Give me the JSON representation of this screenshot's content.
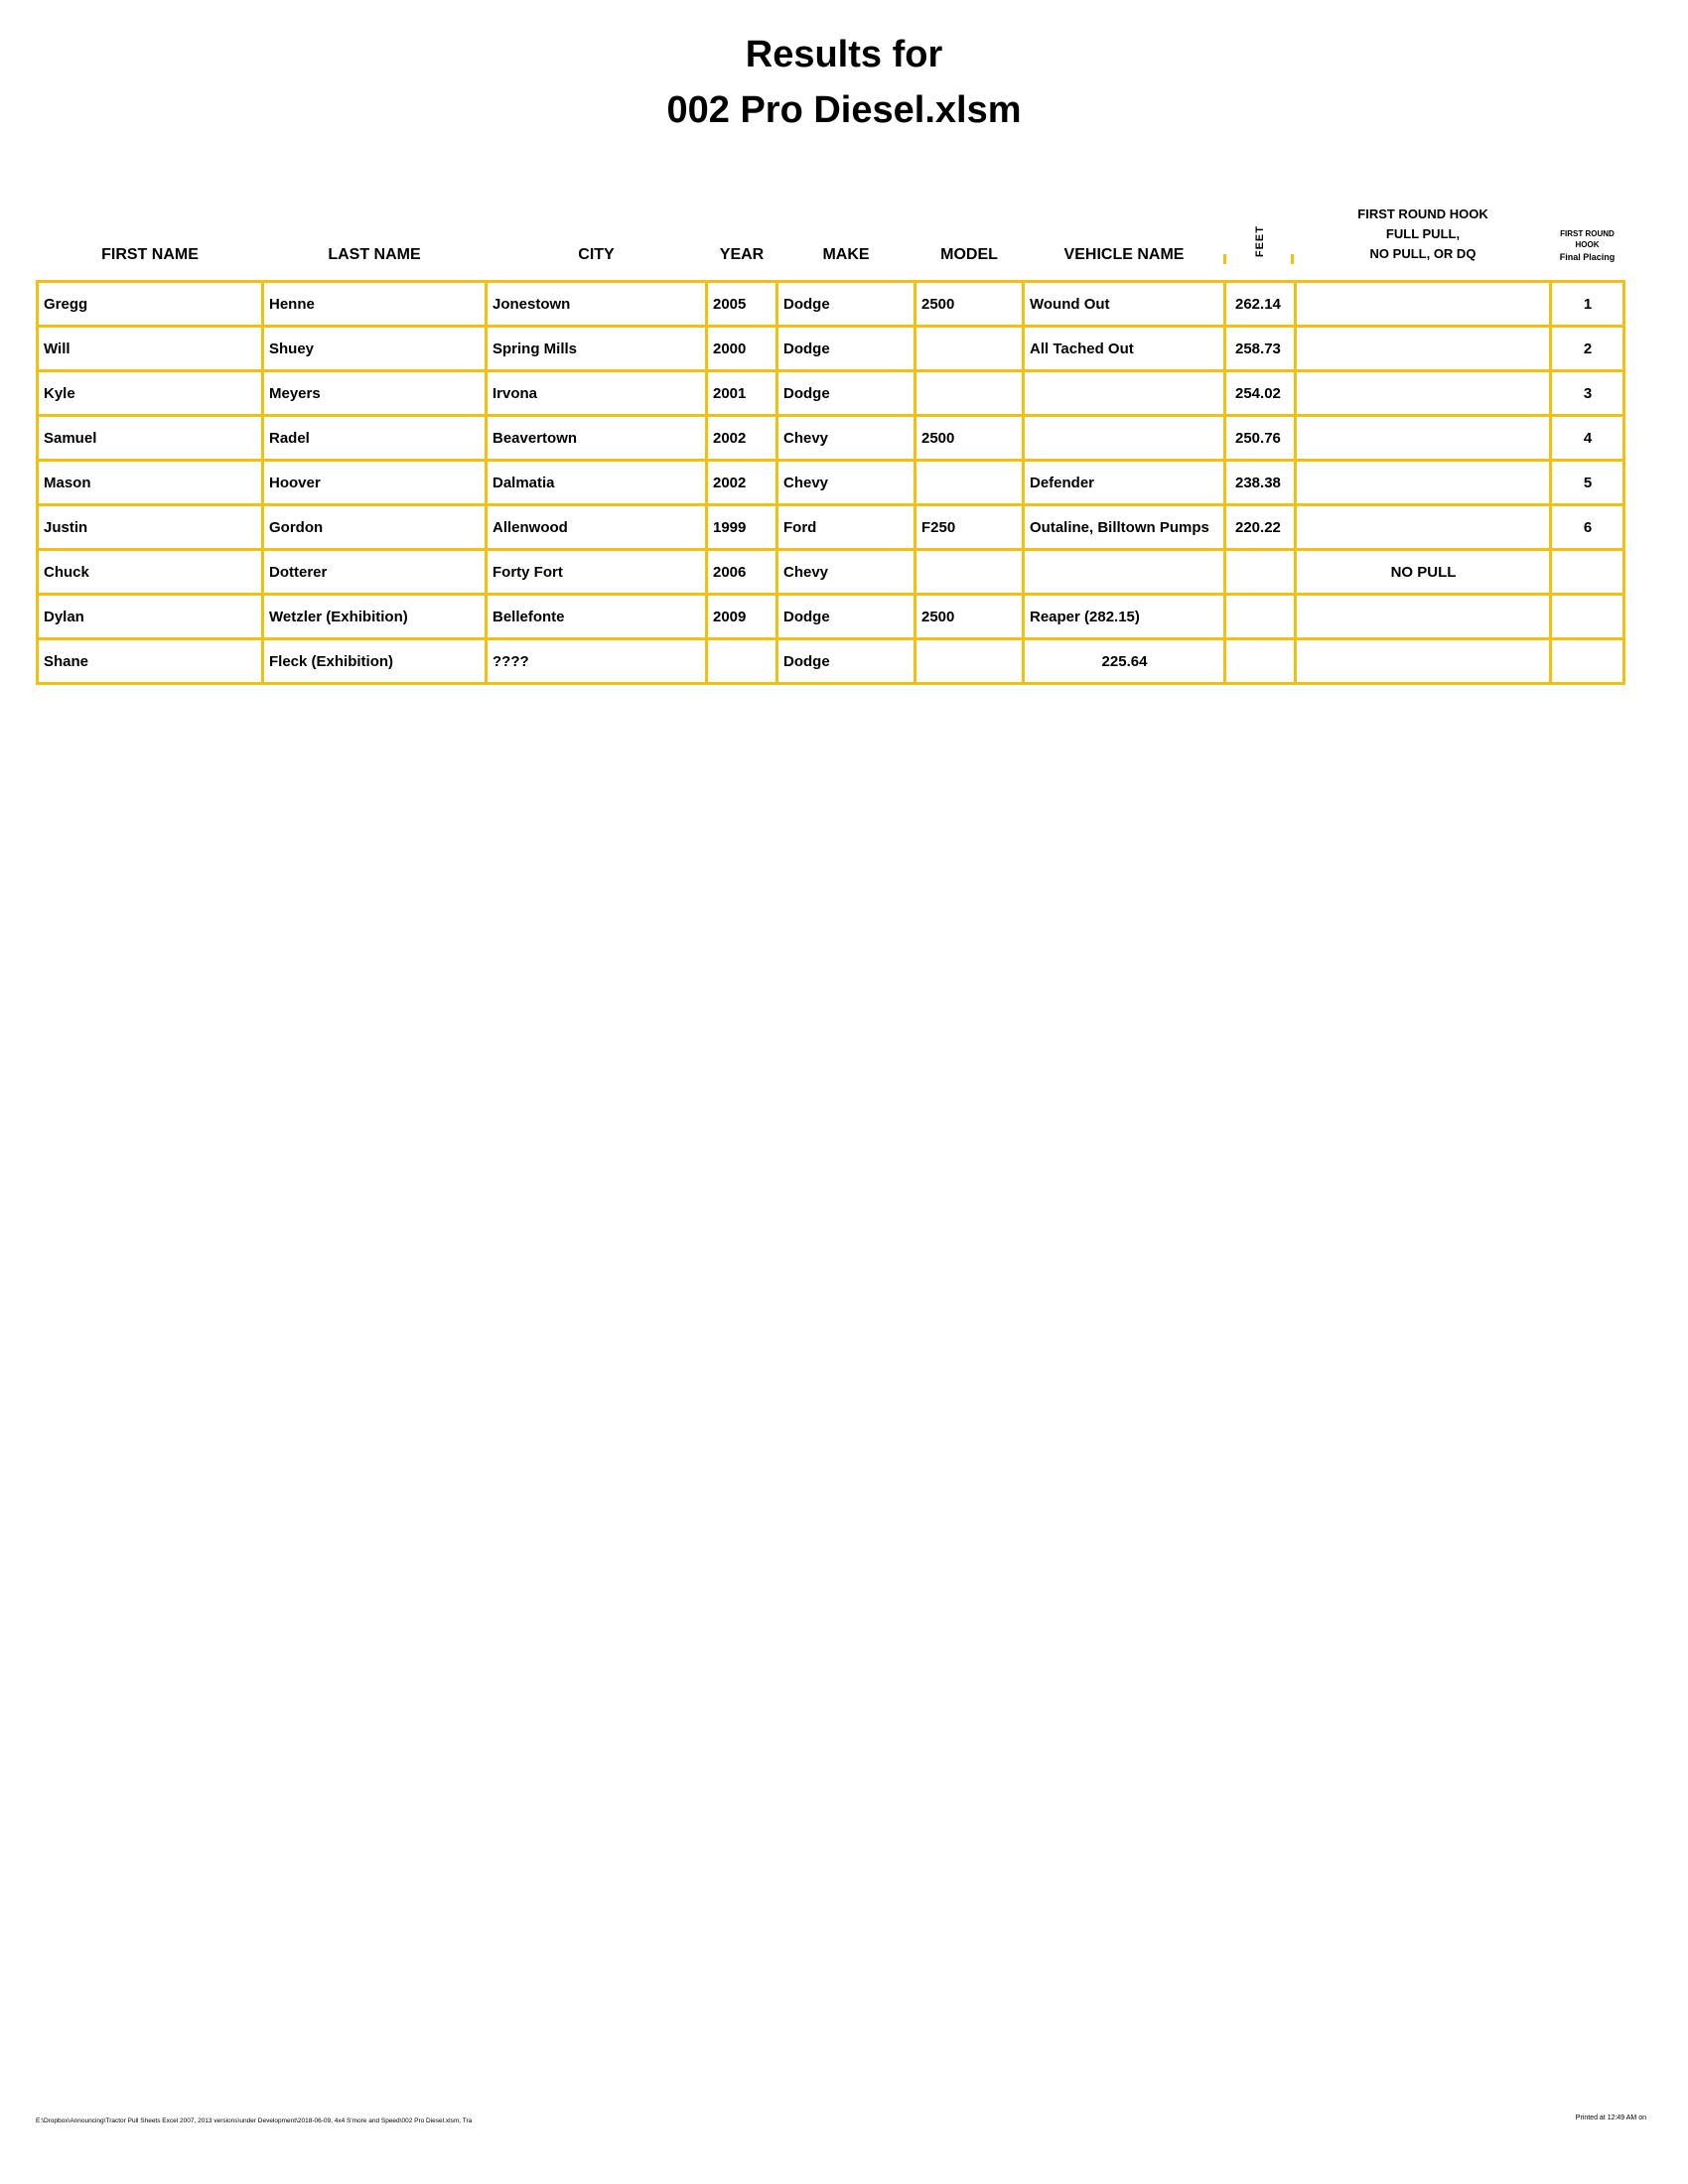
{
  "title": {
    "line1": "Results for",
    "line2": "002 Pro Diesel.xlsm"
  },
  "colors": {
    "table_border": "#F2C011",
    "text": "#000000",
    "background": "#FFFFFF"
  },
  "table": {
    "headers": {
      "first_name": "FIRST NAME",
      "last_name": "LAST NAME",
      "city": "CITY",
      "year": "YEAR",
      "make": "MAKE",
      "model": "MODEL",
      "vehicle_name": "VEHICLE NAME",
      "feet": "FEET",
      "hook": [
        "FIRST ROUND HOOK",
        "FULL PULL,",
        "NO PULL, OR DQ"
      ],
      "placing": [
        "FIRST ROUND",
        "HOOK",
        "Final Placing"
      ]
    },
    "rows": [
      {
        "first": "Gregg",
        "last": "Henne",
        "city": "Jonestown",
        "year": "2005",
        "make": "Dodge",
        "model": "2500",
        "vehicle": "Wound Out",
        "feet": "262.14",
        "hook": "",
        "place": "1"
      },
      {
        "first": "Will",
        "last": "Shuey",
        "city": "Spring Mills",
        "year": "2000",
        "make": "Dodge",
        "model": "",
        "vehicle": "All Tached Out",
        "feet": "258.73",
        "hook": "",
        "place": "2"
      },
      {
        "first": "Kyle",
        "last": "Meyers",
        "city": "Irvona",
        "year": "2001",
        "make": "Dodge",
        "model": "",
        "vehicle": "",
        "feet": "254.02",
        "hook": "",
        "place": "3"
      },
      {
        "first": "Samuel",
        "last": "Radel",
        "city": "Beavertown",
        "year": "2002",
        "make": "Chevy",
        "model": "2500",
        "vehicle": "",
        "feet": "250.76",
        "hook": "",
        "place": "4"
      },
      {
        "first": "Mason",
        "last": "Hoover",
        "city": "Dalmatia",
        "year": "2002",
        "make": "Chevy",
        "model": "",
        "vehicle": "Defender",
        "feet": "238.38",
        "hook": "",
        "place": "5"
      },
      {
        "first": "Justin",
        "last": "Gordon",
        "city": "Allenwood",
        "year": "1999",
        "make": "Ford",
        "model": "F250",
        "vehicle": "Outaline, Billtown Pumps",
        "feet": "220.22",
        "hook": "",
        "place": "6"
      },
      {
        "first": "Chuck",
        "last": "Dotterer",
        "city": "Forty Fort",
        "year": "2006",
        "make": "Chevy",
        "model": "",
        "vehicle": "",
        "feet": "",
        "hook": "NO PULL",
        "place": ""
      },
      {
        "first": "Dylan",
        "last": "Wetzler (Exhibition)",
        "city": "Bellefonte",
        "year": "2009",
        "make": "Dodge",
        "model": "2500",
        "vehicle": "Reaper  (282.15)",
        "feet": "",
        "hook": "",
        "place": ""
      },
      {
        "first": "Shane",
        "last": "Fleck  (Exhibition)",
        "city": "????",
        "year": "",
        "make": "Dodge",
        "model": "",
        "vehicle": "225.64",
        "vehicle_align": "center",
        "feet": "",
        "hook": "",
        "place": ""
      }
    ]
  },
  "footer": {
    "left": "E:\\Dropbox\\Announcing\\Tractor Pull Sheets Excel 2007, 2013 versions\\under Development\\2018-06-09, 4x4 S'more and Speed\\002 Pro Diesel.xlsm,  Tra",
    "right": "Printed at 12:49 AM on"
  }
}
